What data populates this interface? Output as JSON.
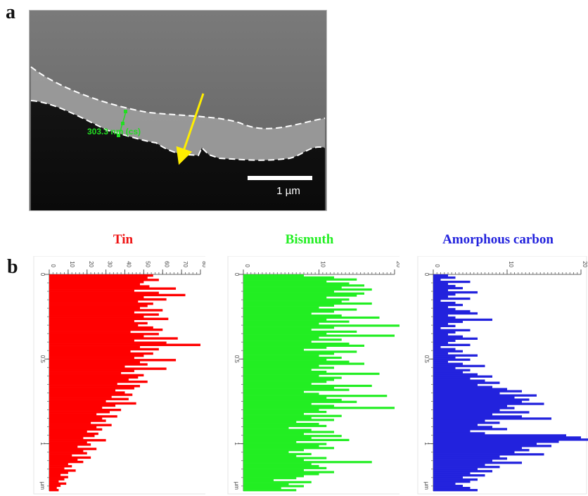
{
  "panel_a": {
    "label": "a",
    "measurement_text": "303.3 nm (cs)",
    "scalebar_text": "1 µm",
    "colors": {
      "boundary": "#ffffff",
      "arrow": "#ffee00",
      "measurement": "#22dd22"
    }
  },
  "panel_b": {
    "label": "b",
    "axis_ticks": [
      "0",
      "0.5",
      "1"
    ],
    "axis_unit": "µm"
  },
  "chart_data": [
    {
      "type": "bar",
      "orientation": "horizontal",
      "title": "Tin",
      "color": "#ff0000",
      "xlabel": "",
      "ylabel": "µm",
      "xlim": [
        0,
        80
      ],
      "ylim": [
        0,
        1.28
      ],
      "x_ticks": [
        0,
        10,
        20,
        30,
        40,
        50,
        60,
        70,
        80
      ],
      "y_ticks": [
        0,
        0.5,
        1
      ],
      "values": [
        55,
        52,
        58,
        50,
        48,
        53,
        67,
        45,
        58,
        72,
        50,
        62,
        47,
        55,
        52,
        48,
        60,
        45,
        58,
        50,
        63,
        45,
        52,
        47,
        55,
        60,
        43,
        58,
        50,
        68,
        45,
        62,
        80,
        48,
        58,
        43,
        55,
        50,
        45,
        67,
        48,
        52,
        40,
        62,
        45,
        38,
        50,
        47,
        42,
        52,
        36,
        48,
        45,
        35,
        40,
        44,
        33,
        42,
        30,
        46,
        35,
        28,
        38,
        32,
        25,
        36,
        28,
        30,
        22,
        33,
        25,
        28,
        20,
        26,
        24,
        18,
        30,
        20,
        22,
        15,
        25,
        18,
        20,
        12,
        22,
        15,
        18,
        10,
        12,
        8,
        14,
        10,
        6,
        10,
        8,
        5,
        9,
        6,
        4,
        5
      ]
    },
    {
      "type": "bar",
      "orientation": "horizontal",
      "title": "Bismuth",
      "color": "#22ee22",
      "xlabel": "",
      "ylabel": "µm",
      "xlim": [
        0,
        20
      ],
      "ylim": [
        0,
        1.28
      ],
      "x_ticks": [
        0,
        10,
        20
      ],
      "y_ticks": [
        0,
        0.5,
        1
      ],
      "values": [
        8,
        12,
        15,
        11,
        14,
        16,
        13,
        17,
        12,
        16,
        15,
        11,
        14,
        13,
        17,
        12,
        10,
        15,
        12,
        9,
        13,
        18,
        11,
        14,
        10,
        21,
        12,
        9,
        15,
        11,
        20,
        10,
        13,
        9,
        14,
        16,
        11,
        8,
        15,
        12,
        10,
        13,
        11,
        14,
        16,
        10,
        12,
        9,
        11,
        18,
        10,
        13,
        12,
        11,
        9,
        17,
        12,
        14,
        8,
        10,
        19,
        11,
        13,
        15,
        9,
        12,
        20,
        10,
        11,
        8,
        13,
        9,
        12,
        7,
        10,
        11,
        6,
        9,
        12,
        8,
        13,
        9,
        14,
        7,
        11,
        10,
        12,
        8,
        6,
        9,
        7,
        11,
        8,
        17,
        9,
        10,
        11,
        8,
        12,
        10,
        8,
        7,
        4,
        9,
        6,
        8,
        5,
        7
      ]
    },
    {
      "type": "bar",
      "orientation": "horizontal",
      "title": "Amorphous carbon",
      "color": "#2222dd",
      "xlabel": "",
      "ylabel": "µm",
      "xlim": [
        0,
        20
      ],
      "ylim": [
        0,
        1.28
      ],
      "x_ticks": [
        0,
        10,
        20
      ],
      "y_ticks": [
        0,
        0.5,
        1
      ],
      "values": [
        2,
        3,
        1,
        5,
        2,
        3,
        4,
        2,
        6,
        3,
        2,
        5,
        1,
        3,
        4,
        2,
        3,
        5,
        6,
        2,
        3,
        8,
        4,
        2,
        3,
        1,
        5,
        3,
        2,
        4,
        6,
        3,
        2,
        5,
        1,
        3,
        4,
        2,
        6,
        3,
        5,
        2,
        4,
        7,
        3,
        5,
        4,
        6,
        8,
        5,
        7,
        9,
        6,
        8,
        10,
        12,
        9,
        14,
        11,
        13,
        12,
        15,
        10,
        11,
        9,
        13,
        8,
        12,
        16,
        7,
        9,
        6,
        8,
        10,
        5,
        7,
        18,
        20,
        21,
        17,
        14,
        16,
        12,
        13,
        11,
        15,
        9,
        10,
        8,
        12,
        7,
        9,
        6,
        8,
        5,
        7,
        4,
        6,
        5,
        3,
        4,
        5,
        6
      ]
    }
  ]
}
